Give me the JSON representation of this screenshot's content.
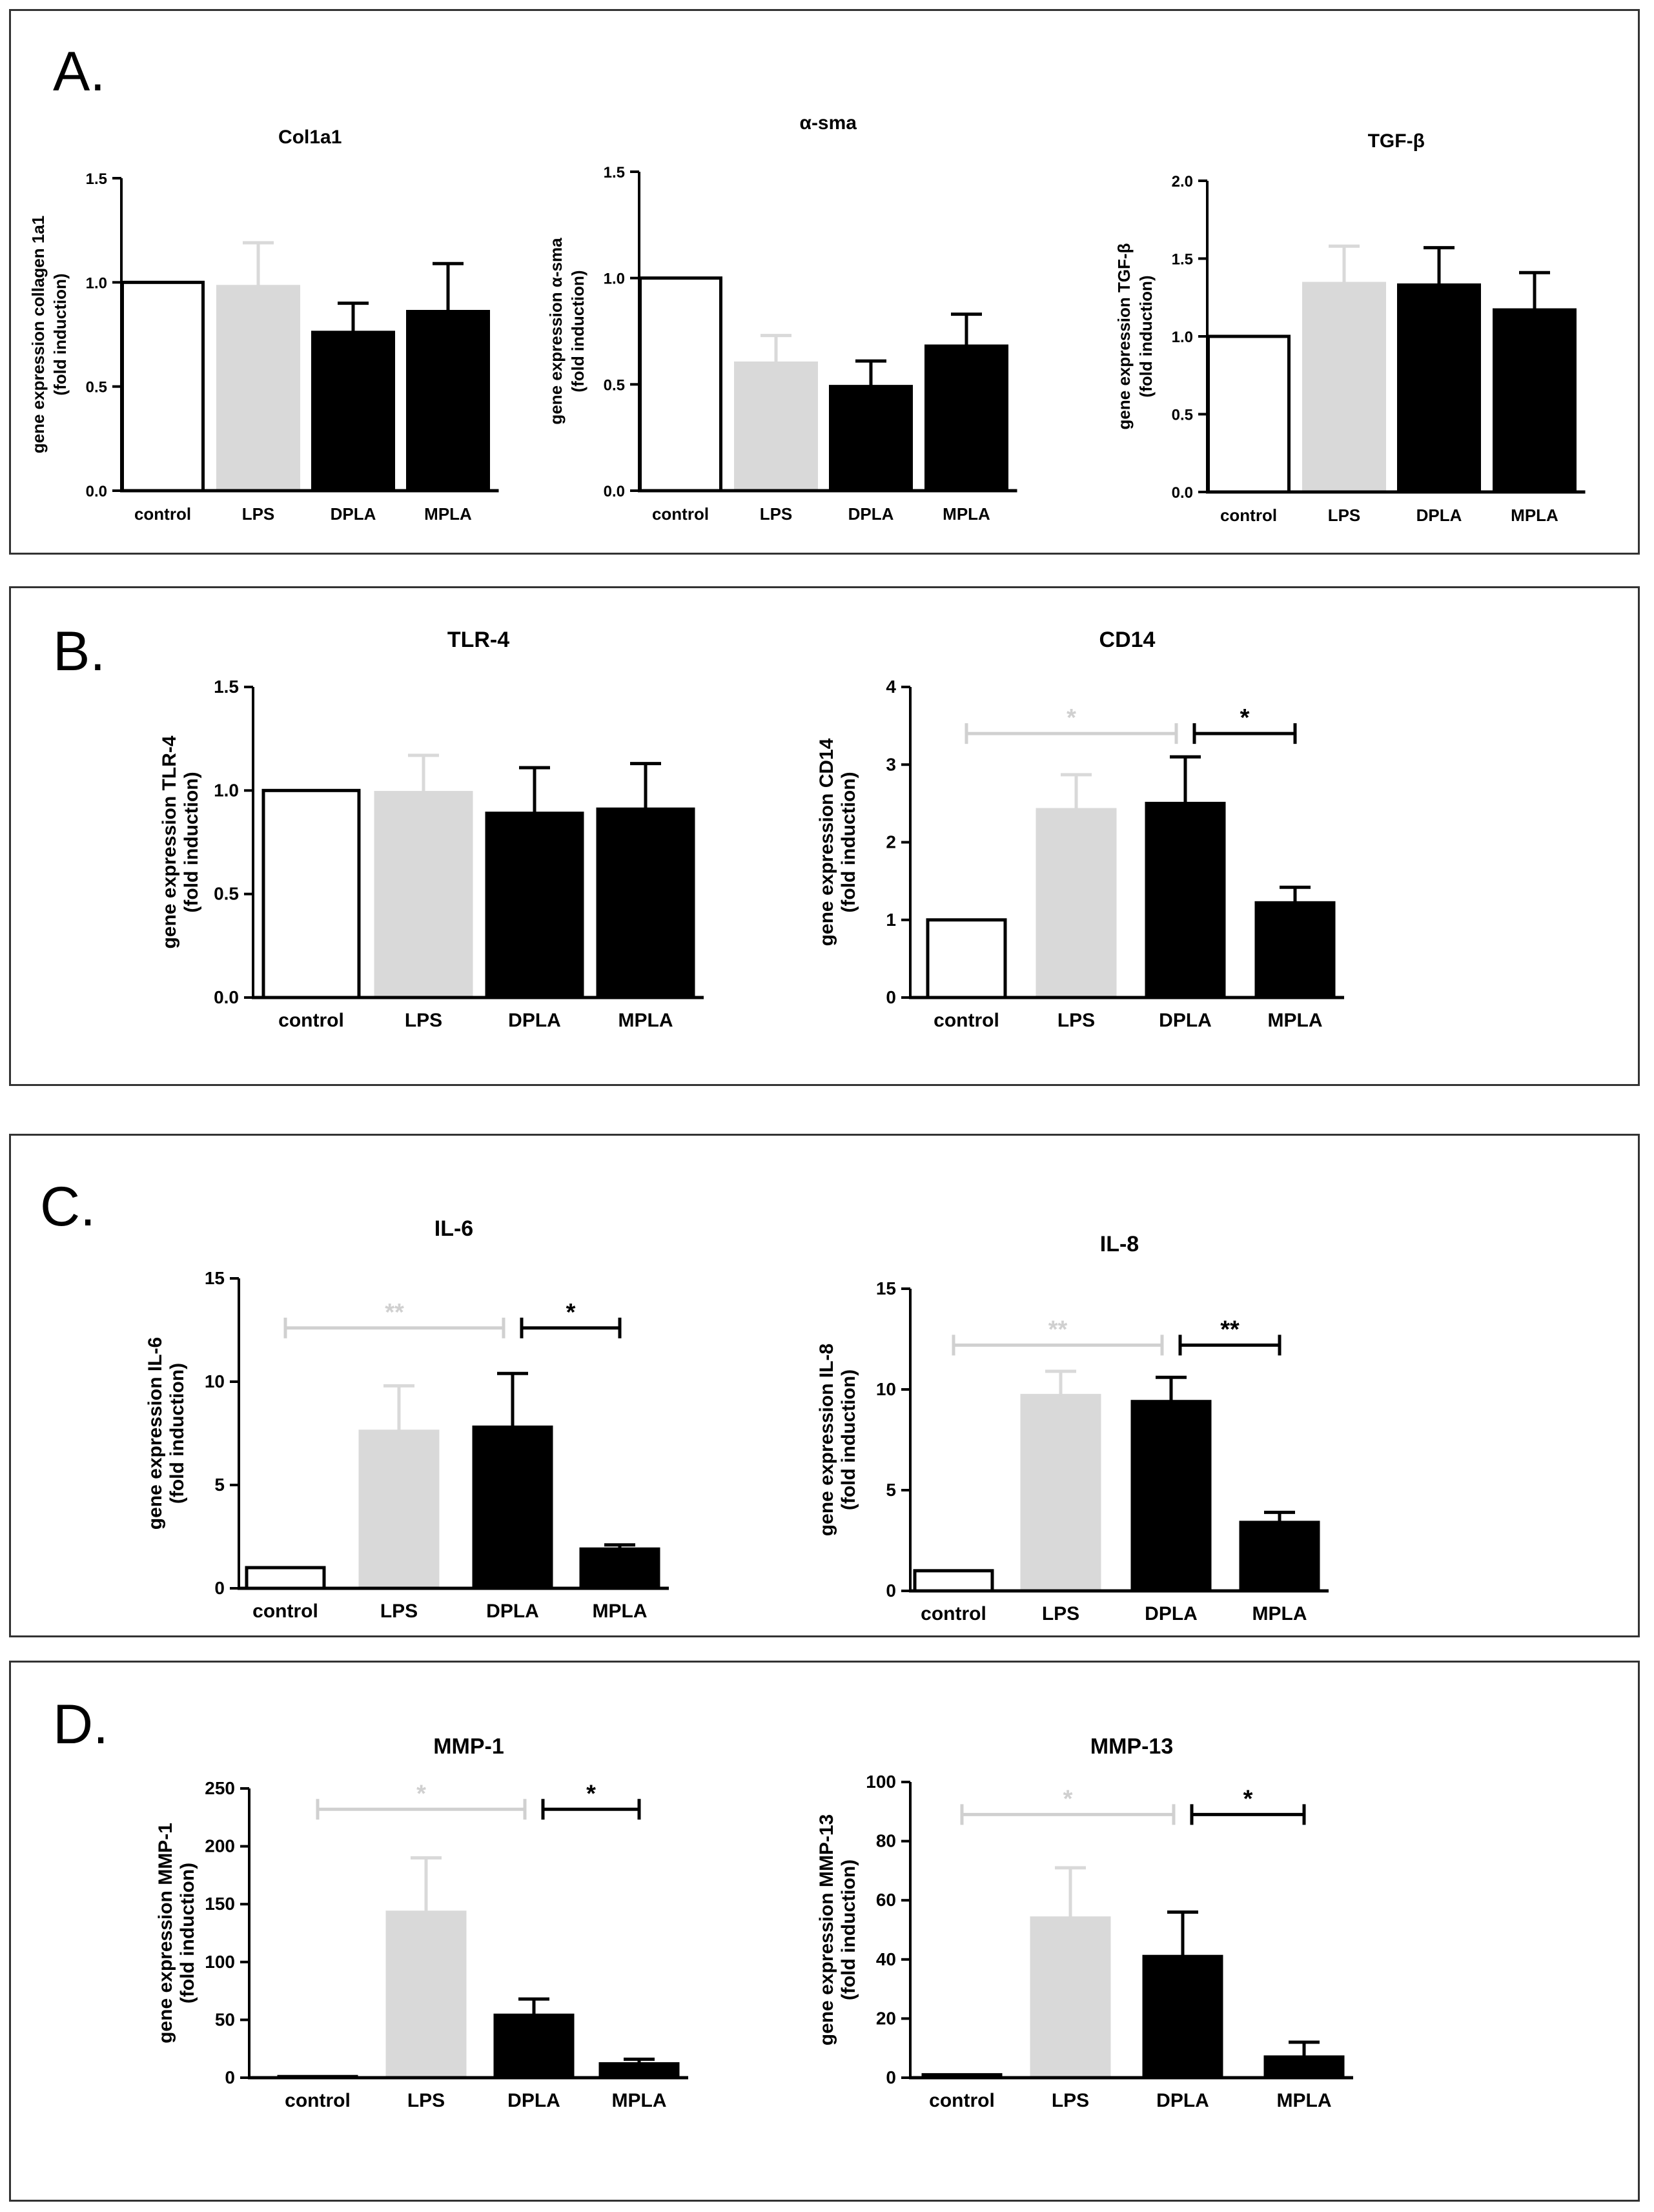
{
  "panels": [
    {
      "label": "A."
    },
    {
      "label": "B."
    },
    {
      "label": "C."
    },
    {
      "label": "D."
    }
  ],
  "colors": {
    "control": "#ffffff",
    "LPS": "#d9d9d9",
    "DPLA": "#000000",
    "MPLA": "#000000",
    "sig_gray": "#d0d0d0",
    "sig_black": "#000000"
  },
  "chart_data": [
    {
      "type": "bar",
      "title": "Col1a1",
      "ylabel": [
        "gene expression collagen 1a1",
        "(fold induction)"
      ],
      "categories": [
        "control",
        "LPS",
        "DPLA",
        "MPLA"
      ],
      "values": [
        1.0,
        0.98,
        0.76,
        0.86
      ],
      "errors": [
        0,
        0.21,
        0.14,
        0.23
      ],
      "ylim": [
        0,
        1.5
      ],
      "yticks": [
        0.0,
        0.5,
        1.0,
        1.5
      ],
      "tick_labels": [
        "0.0",
        "0.5",
        "1.0",
        "1.5"
      ],
      "significance": []
    },
    {
      "type": "bar",
      "title": "α-sma",
      "ylabel": [
        "gene expression α-sma",
        "(fold induction)"
      ],
      "categories": [
        "control",
        "LPS",
        "DPLA",
        "MPLA"
      ],
      "values": [
        1.0,
        0.6,
        0.49,
        0.68
      ],
      "errors": [
        0,
        0.13,
        0.12,
        0.15
      ],
      "ylim": [
        0,
        1.5
      ],
      "yticks": [
        0.0,
        0.5,
        1.0,
        1.5
      ],
      "tick_labels": [
        "0.0",
        "0.5",
        "1.0",
        "1.5"
      ],
      "significance": []
    },
    {
      "type": "bar",
      "title": "TGF-β",
      "ylabel": [
        "gene expression  TGF-β",
        "(fold induction)"
      ],
      "categories": [
        "control",
        "LPS",
        "DPLA",
        "MPLA"
      ],
      "values": [
        1.0,
        1.34,
        1.33,
        1.17
      ],
      "errors": [
        0,
        0.24,
        0.24,
        0.24
      ],
      "ylim": [
        0,
        2.0
      ],
      "yticks": [
        0.0,
        0.5,
        1.0,
        1.5,
        2.0
      ],
      "tick_labels": [
        "0.0",
        "0.5",
        "1.0",
        "1.5",
        "2.0"
      ],
      "significance": []
    },
    {
      "type": "bar",
      "title": "TLR-4",
      "ylabel": [
        "gene expression TLR-4",
        "(fold induction)"
      ],
      "categories": [
        "control",
        "LPS",
        "DPLA",
        "MPLA"
      ],
      "values": [
        1.0,
        0.99,
        0.89,
        0.91
      ],
      "errors": [
        0,
        0.18,
        0.22,
        0.22
      ],
      "ylim": [
        0,
        1.5
      ],
      "yticks": [
        0.0,
        0.5,
        1.0,
        1.5
      ],
      "tick_labels": [
        "0.0",
        "0.5",
        "1.0",
        "1.5"
      ],
      "significance": []
    },
    {
      "type": "bar",
      "title": "CD14",
      "ylabel": [
        "gene expression CD14",
        "(fold induction)"
      ],
      "categories": [
        "control",
        "LPS",
        "DPLA",
        "MPLA"
      ],
      "values": [
        1.0,
        2.42,
        2.5,
        1.22
      ],
      "errors": [
        0,
        0.45,
        0.6,
        0.2
      ],
      "ylim": [
        0,
        4
      ],
      "yticks": [
        0,
        1,
        2,
        3,
        4
      ],
      "tick_labels": [
        "0",
        "1",
        "2",
        "3",
        "4"
      ],
      "significance": [
        {
          "from": 0,
          "to": 2,
          "y": 3.4,
          "label": "*",
          "color": "gray"
        },
        {
          "from": 2,
          "to": 3,
          "y": 3.4,
          "label": "*",
          "color": "black"
        }
      ]
    },
    {
      "type": "bar",
      "title": "IL-6",
      "ylabel": [
        "gene expression IL-6",
        "(fold induction)"
      ],
      "categories": [
        "control",
        "LPS",
        "DPLA",
        "MPLA"
      ],
      "values": [
        1.0,
        7.6,
        7.8,
        1.9
      ],
      "errors": [
        0,
        2.2,
        2.6,
        0.2
      ],
      "ylim": [
        0,
        15
      ],
      "yticks": [
        0,
        5,
        10,
        15
      ],
      "tick_labels": [
        "0",
        "5",
        "10",
        "15"
      ],
      "significance": [
        {
          "from": 0,
          "to": 2,
          "y": 12.6,
          "label": "**",
          "color": "gray"
        },
        {
          "from": 2,
          "to": 3,
          "y": 12.6,
          "label": "*",
          "color": "black"
        }
      ]
    },
    {
      "type": "bar",
      "title": "IL-8",
      "ylabel": [
        "gene expression IL-8",
        "(fold induction)"
      ],
      "categories": [
        "control",
        "LPS",
        "DPLA",
        "MPLA"
      ],
      "values": [
        1.0,
        9.7,
        9.4,
        3.4
      ],
      "errors": [
        0,
        1.2,
        1.2,
        0.5
      ],
      "ylim": [
        0,
        15
      ],
      "yticks": [
        0,
        5,
        10,
        15
      ],
      "tick_labels": [
        "0",
        "5",
        "10",
        "15"
      ],
      "significance": [
        {
          "from": 0,
          "to": 2,
          "y": 12.2,
          "label": "**",
          "color": "gray"
        },
        {
          "from": 2,
          "to": 3,
          "y": 12.2,
          "label": "**",
          "color": "black"
        }
      ]
    },
    {
      "type": "bar",
      "title": "MMP-1",
      "ylabel": [
        "gene expression MMP-1",
        "(fold induction)"
      ],
      "categories": [
        "control",
        "LPS",
        "DPLA",
        "MPLA"
      ],
      "values": [
        1.0,
        143,
        54,
        12
      ],
      "errors": [
        0,
        47,
        14,
        4
      ],
      "ylim": [
        0,
        250
      ],
      "yticks": [
        0,
        50,
        100,
        150,
        200,
        250
      ],
      "tick_labels": [
        "0",
        "50",
        "100",
        "150",
        "200",
        "250"
      ],
      "significance": [
        {
          "from": 0,
          "to": 2,
          "y": 232,
          "label": "*",
          "color": "gray"
        },
        {
          "from": 2,
          "to": 3,
          "y": 232,
          "label": "*",
          "color": "black"
        }
      ]
    },
    {
      "type": "bar",
      "title": "MMP-13",
      "ylabel": [
        "gene expression MMP-13",
        "(fold induction)"
      ],
      "categories": [
        "control",
        "LPS",
        "DPLA",
        "MPLA"
      ],
      "values": [
        1.0,
        54,
        41,
        7
      ],
      "errors": [
        0,
        17,
        15,
        5
      ],
      "ylim": [
        0,
        100
      ],
      "yticks": [
        0,
        20,
        40,
        60,
        80,
        100
      ],
      "tick_labels": [
        "0",
        "20",
        "40",
        "60",
        "80",
        "100"
      ],
      "significance": [
        {
          "from": 0,
          "to": 2,
          "y": 89,
          "label": "*",
          "color": "gray"
        },
        {
          "from": 2,
          "to": 3,
          "y": 89,
          "label": "*",
          "color": "black"
        }
      ]
    }
  ]
}
